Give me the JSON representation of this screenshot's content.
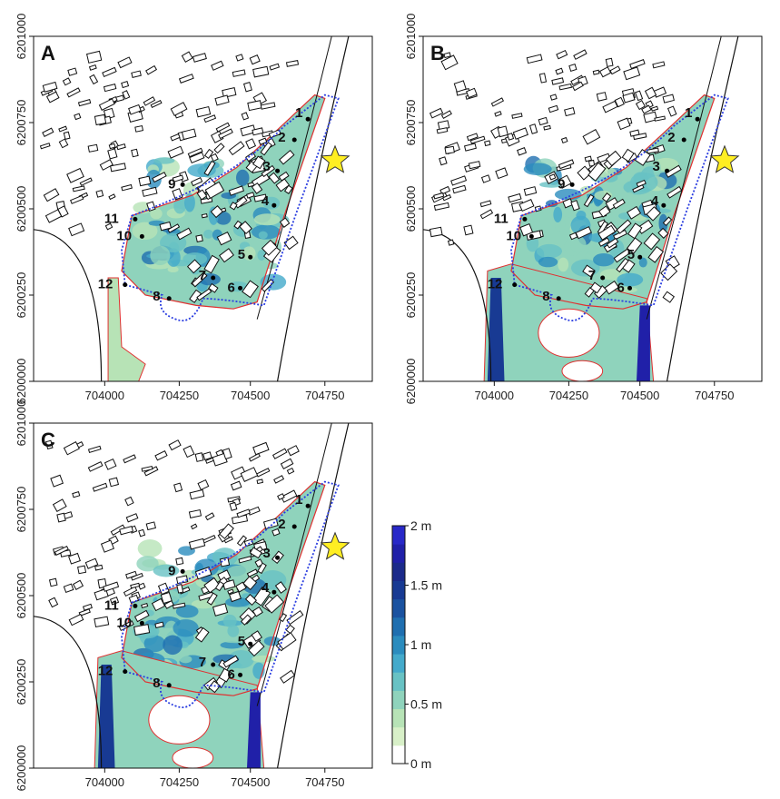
{
  "panels": [
    {
      "id": "A",
      "letter": "A",
      "flood": "small"
    },
    {
      "id": "B",
      "letter": "B",
      "flood": "large"
    },
    {
      "id": "C",
      "letter": "C",
      "flood": "large"
    }
  ],
  "x_ticks": [
    "704000",
    "704250",
    "704500",
    "704750"
  ],
  "y_ticks": [
    "6200000",
    "6200250",
    "6200500",
    "6200750",
    "6201000"
  ],
  "points": [
    {
      "label": "1"
    },
    {
      "label": "2"
    },
    {
      "label": "3"
    },
    {
      "label": "4"
    },
    {
      "label": "5"
    },
    {
      "label": "6"
    },
    {
      "label": "7"
    },
    {
      "label": "8"
    },
    {
      "label": "9"
    },
    {
      "label": "10"
    },
    {
      "label": "11"
    },
    {
      "label": "12"
    }
  ],
  "legend": {
    "labels": [
      "2 m",
      "1.5 m",
      "1 m",
      "0.5 m",
      "0 m"
    ],
    "min": 0,
    "max": 2,
    "colors": [
      "#ffffff",
      "#d8f0c8",
      "#b7e3b6",
      "#8fd3bc",
      "#68c2c4",
      "#44aacb",
      "#2b8cbe",
      "#1f6fb0",
      "#1a52a0",
      "#183a93",
      "#1b2a8a",
      "#2020a8",
      "#2828c8"
    ]
  },
  "colors": {
    "building_outline": "#111111",
    "flood_outline": "#e03030",
    "study_area": "#2a3de0",
    "star_fill": "#ffee22",
    "star_stroke": "#333333"
  },
  "icons": {
    "epicenter": "star-icon"
  }
}
